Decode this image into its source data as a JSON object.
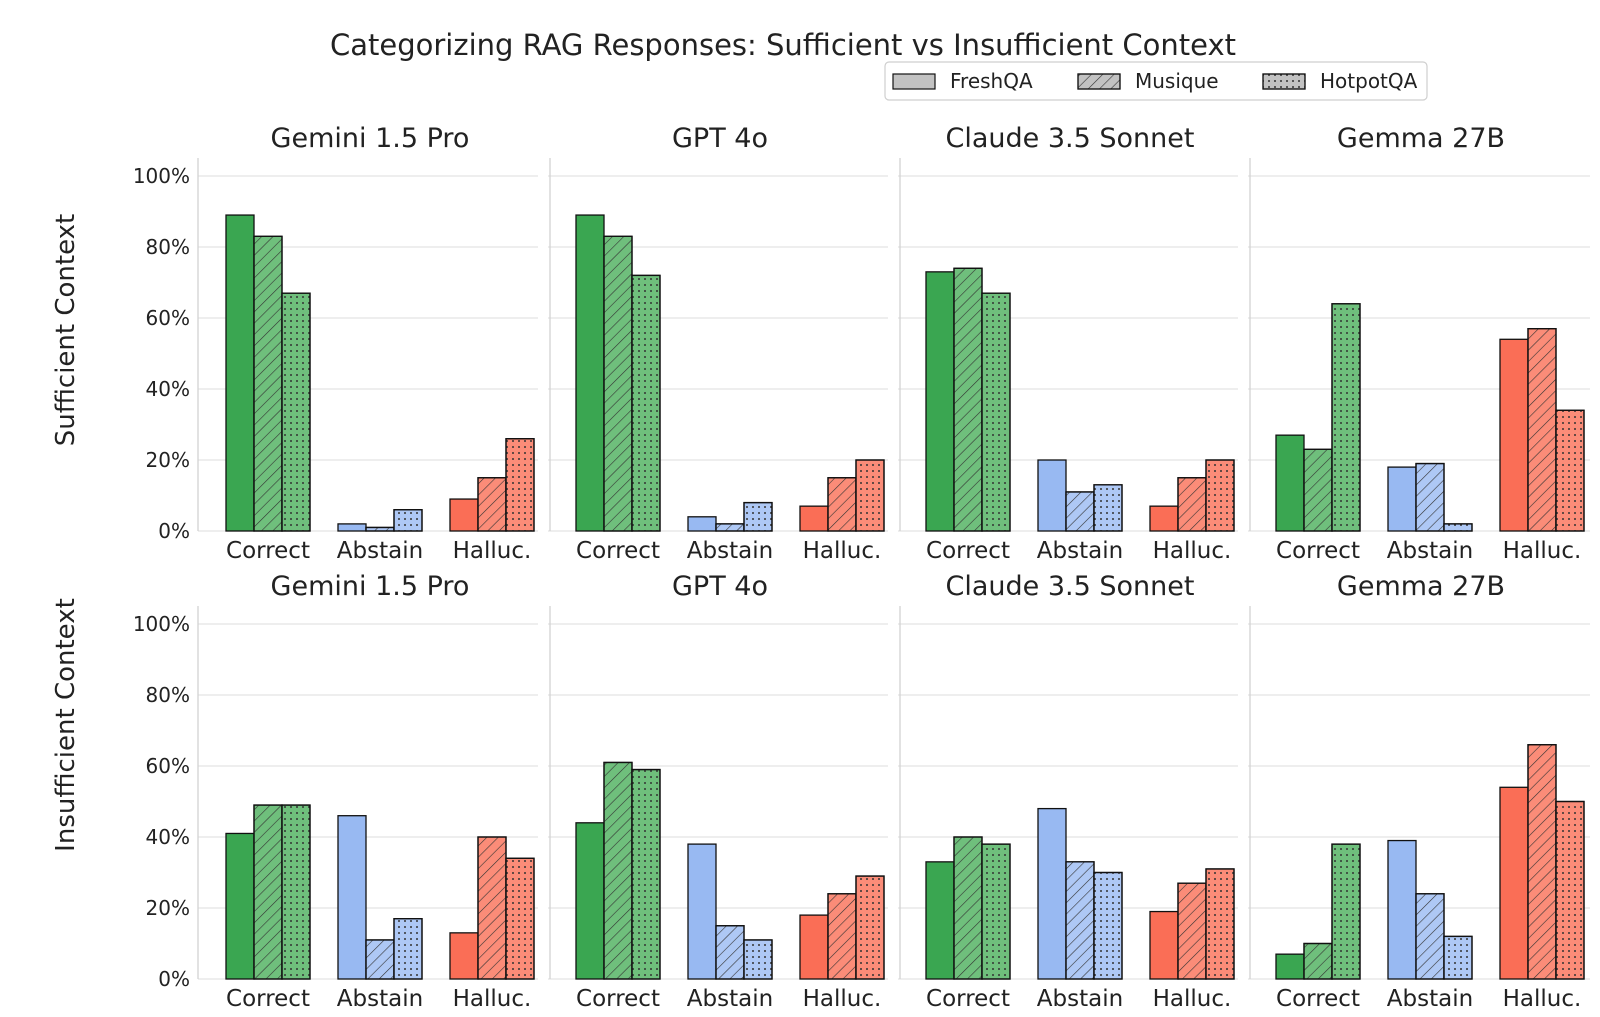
{
  "chart_data": {
    "type": "bar",
    "title": "Categorizing RAG Responses: Sufficient vs Insufficient Context",
    "legend": {
      "placement": "top-right",
      "entries": [
        {
          "label": "FreshQA",
          "pattern": "solid"
        },
        {
          "label": "Musique",
          "pattern": "hatch"
        },
        {
          "label": "HotpotQA",
          "pattern": "dots"
        }
      ]
    },
    "datasets": [
      "FreshQA",
      "Musique",
      "HotpotQA"
    ],
    "categories": [
      "Correct",
      "Abstain",
      "Halluc."
    ],
    "category_colors": {
      "Correct": {
        "fill": "#3aa651",
        "light": "#6fbf7c"
      },
      "Abstain": {
        "fill": "#98b9f2",
        "light": "#aec8f5"
      },
      "Halluc.": {
        "fill": "#fa6e56",
        "light": "#fb8c78"
      }
    },
    "ylim": [
      0,
      100
    ],
    "yticks": [
      "0%",
      "20%",
      "40%",
      "60%",
      "80%",
      "100%"
    ],
    "ytick_values": [
      0,
      20,
      40,
      60,
      80,
      100
    ],
    "grid": true,
    "rows": [
      {
        "ylabel": "Sufficient Context",
        "panels": [
          {
            "title": "Gemini 1.5 Pro",
            "values": [
              [
                89,
                83,
                67
              ],
              [
                2,
                1,
                6
              ],
              [
                9,
                15,
                26
              ]
            ]
          },
          {
            "title": "GPT 4o",
            "values": [
              [
                89,
                83,
                72
              ],
              [
                4,
                2,
                8
              ],
              [
                7,
                15,
                20
              ]
            ]
          },
          {
            "title": "Claude 3.5 Sonnet",
            "values": [
              [
                73,
                74,
                67
              ],
              [
                20,
                11,
                13
              ],
              [
                7,
                15,
                20
              ]
            ]
          },
          {
            "title": "Gemma 27B",
            "values": [
              [
                27,
                23,
                64
              ],
              [
                18,
                19,
                2
              ],
              [
                54,
                57,
                34
              ]
            ]
          }
        ]
      },
      {
        "ylabel": "Insufficient Context",
        "panels": [
          {
            "title": "Gemini 1.5 Pro",
            "values": [
              [
                41,
                49,
                49
              ],
              [
                46,
                11,
                17
              ],
              [
                13,
                40,
                34
              ]
            ]
          },
          {
            "title": "GPT 4o",
            "values": [
              [
                44,
                61,
                59
              ],
              [
                38,
                15,
                11
              ],
              [
                18,
                24,
                29
              ]
            ]
          },
          {
            "title": "Claude 3.5 Sonnet",
            "values": [
              [
                33,
                40,
                38
              ],
              [
                48,
                33,
                30
              ],
              [
                19,
                27,
                31
              ]
            ]
          },
          {
            "title": "Gemma 27B",
            "values": [
              [
                7,
                10,
                38
              ],
              [
                39,
                24,
                12
              ],
              [
                54,
                66,
                50
              ]
            ]
          }
        ]
      }
    ]
  }
}
